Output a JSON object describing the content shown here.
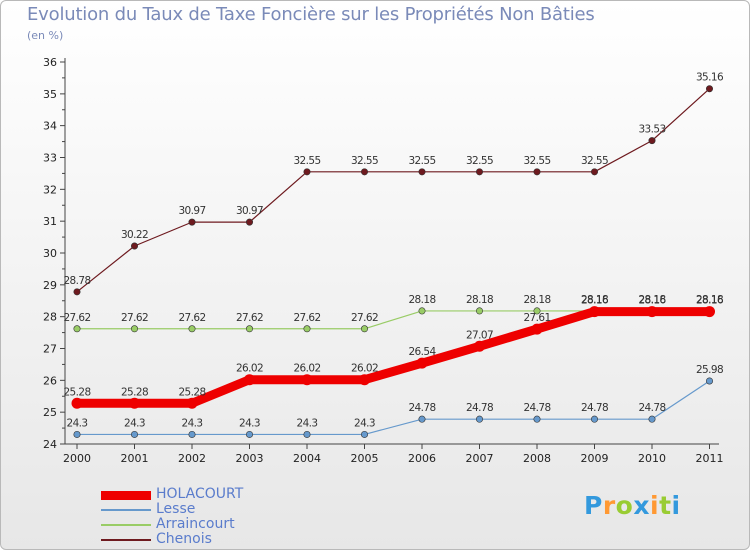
{
  "header": {
    "title": "Evolution du Taux de Taxe Foncière sur les Propriétés Non Bâties",
    "subtitle": "(en %)"
  },
  "chart_data": {
    "type": "line",
    "title": "Evolution du Taux de Taxe Foncière sur les Propriétés Non Bâties",
    "ylabel": "(en %)",
    "xlabel": "",
    "ylim": [
      24,
      36
    ],
    "yticks": [
      24,
      25,
      26,
      27,
      28,
      29,
      30,
      31,
      32,
      33,
      34,
      35,
      36
    ],
    "categories": [
      "2000",
      "2001",
      "2002",
      "2003",
      "2004",
      "2005",
      "2006",
      "2007",
      "2008",
      "2009",
      "2010",
      "2011"
    ],
    "series": [
      {
        "name": "Chenois",
        "color": "#6e1a1f",
        "values": [
          28.78,
          30.22,
          30.97,
          30.97,
          32.55,
          32.55,
          32.55,
          32.55,
          32.55,
          32.55,
          33.53,
          35.16
        ],
        "labels": [
          "28.78",
          "30.22",
          "30.97",
          "30.97",
          "32.55",
          "32.55",
          "32.55",
          "32.55",
          "32.55",
          "32.55",
          "33.53",
          "35.16"
        ]
      },
      {
        "name": "Arraincourt",
        "color": "#99cc66",
        "values": [
          27.62,
          27.62,
          27.62,
          27.62,
          27.62,
          27.62,
          28.18,
          28.18,
          28.18,
          28.18,
          28.18,
          28.18
        ],
        "labels": [
          "27.62",
          "27.62",
          "27.62",
          "27.62",
          "27.62",
          "27.62",
          "28.18",
          "28.18",
          "28.18",
          "28.18",
          "28.18",
          "28.18"
        ]
      },
      {
        "name": "Lesse",
        "color": "#6699cc",
        "values": [
          24.3,
          24.3,
          24.3,
          24.3,
          24.3,
          24.3,
          24.78,
          24.78,
          24.78,
          24.78,
          24.78,
          25.98
        ],
        "labels": [
          "24.3",
          "24.3",
          "24.3",
          "24.3",
          "24.3",
          "24.3",
          "24.78",
          "24.78",
          "24.78",
          "24.78",
          "24.78",
          "25.98"
        ]
      },
      {
        "name": "HOLACOURT",
        "color": "#ee0000",
        "values": [
          25.28,
          25.28,
          25.28,
          26.02,
          26.02,
          26.02,
          26.54,
          27.07,
          27.61,
          28.16,
          28.16,
          28.16
        ],
        "labels": [
          "25.28",
          "25.28",
          "25.28",
          "26.02",
          "26.02",
          "26.02",
          "26.54",
          "27.07",
          "27.61",
          "28.16",
          "28.16",
          "28.16"
        ]
      }
    ],
    "legend": [
      "HOLACOURT",
      "Lesse",
      "Arraincourt",
      "Chenois"
    ]
  },
  "legend": {
    "items": [
      {
        "label": "HOLACOURT",
        "color": "#ee0000"
      },
      {
        "label": "Lesse",
        "color": "#6699cc"
      },
      {
        "label": "Arraincourt",
        "color": "#99cc66"
      },
      {
        "label": "Chenois",
        "color": "#6e1a1f"
      }
    ]
  },
  "logo": {
    "letters": [
      "P",
      "r",
      "o",
      "x",
      "i",
      "t",
      "i"
    ],
    "colors": [
      "#3399dd",
      "#ff9933",
      "#99cc33",
      "#3399dd",
      "#ff9933",
      "#99cc33",
      "#3399dd"
    ]
  }
}
